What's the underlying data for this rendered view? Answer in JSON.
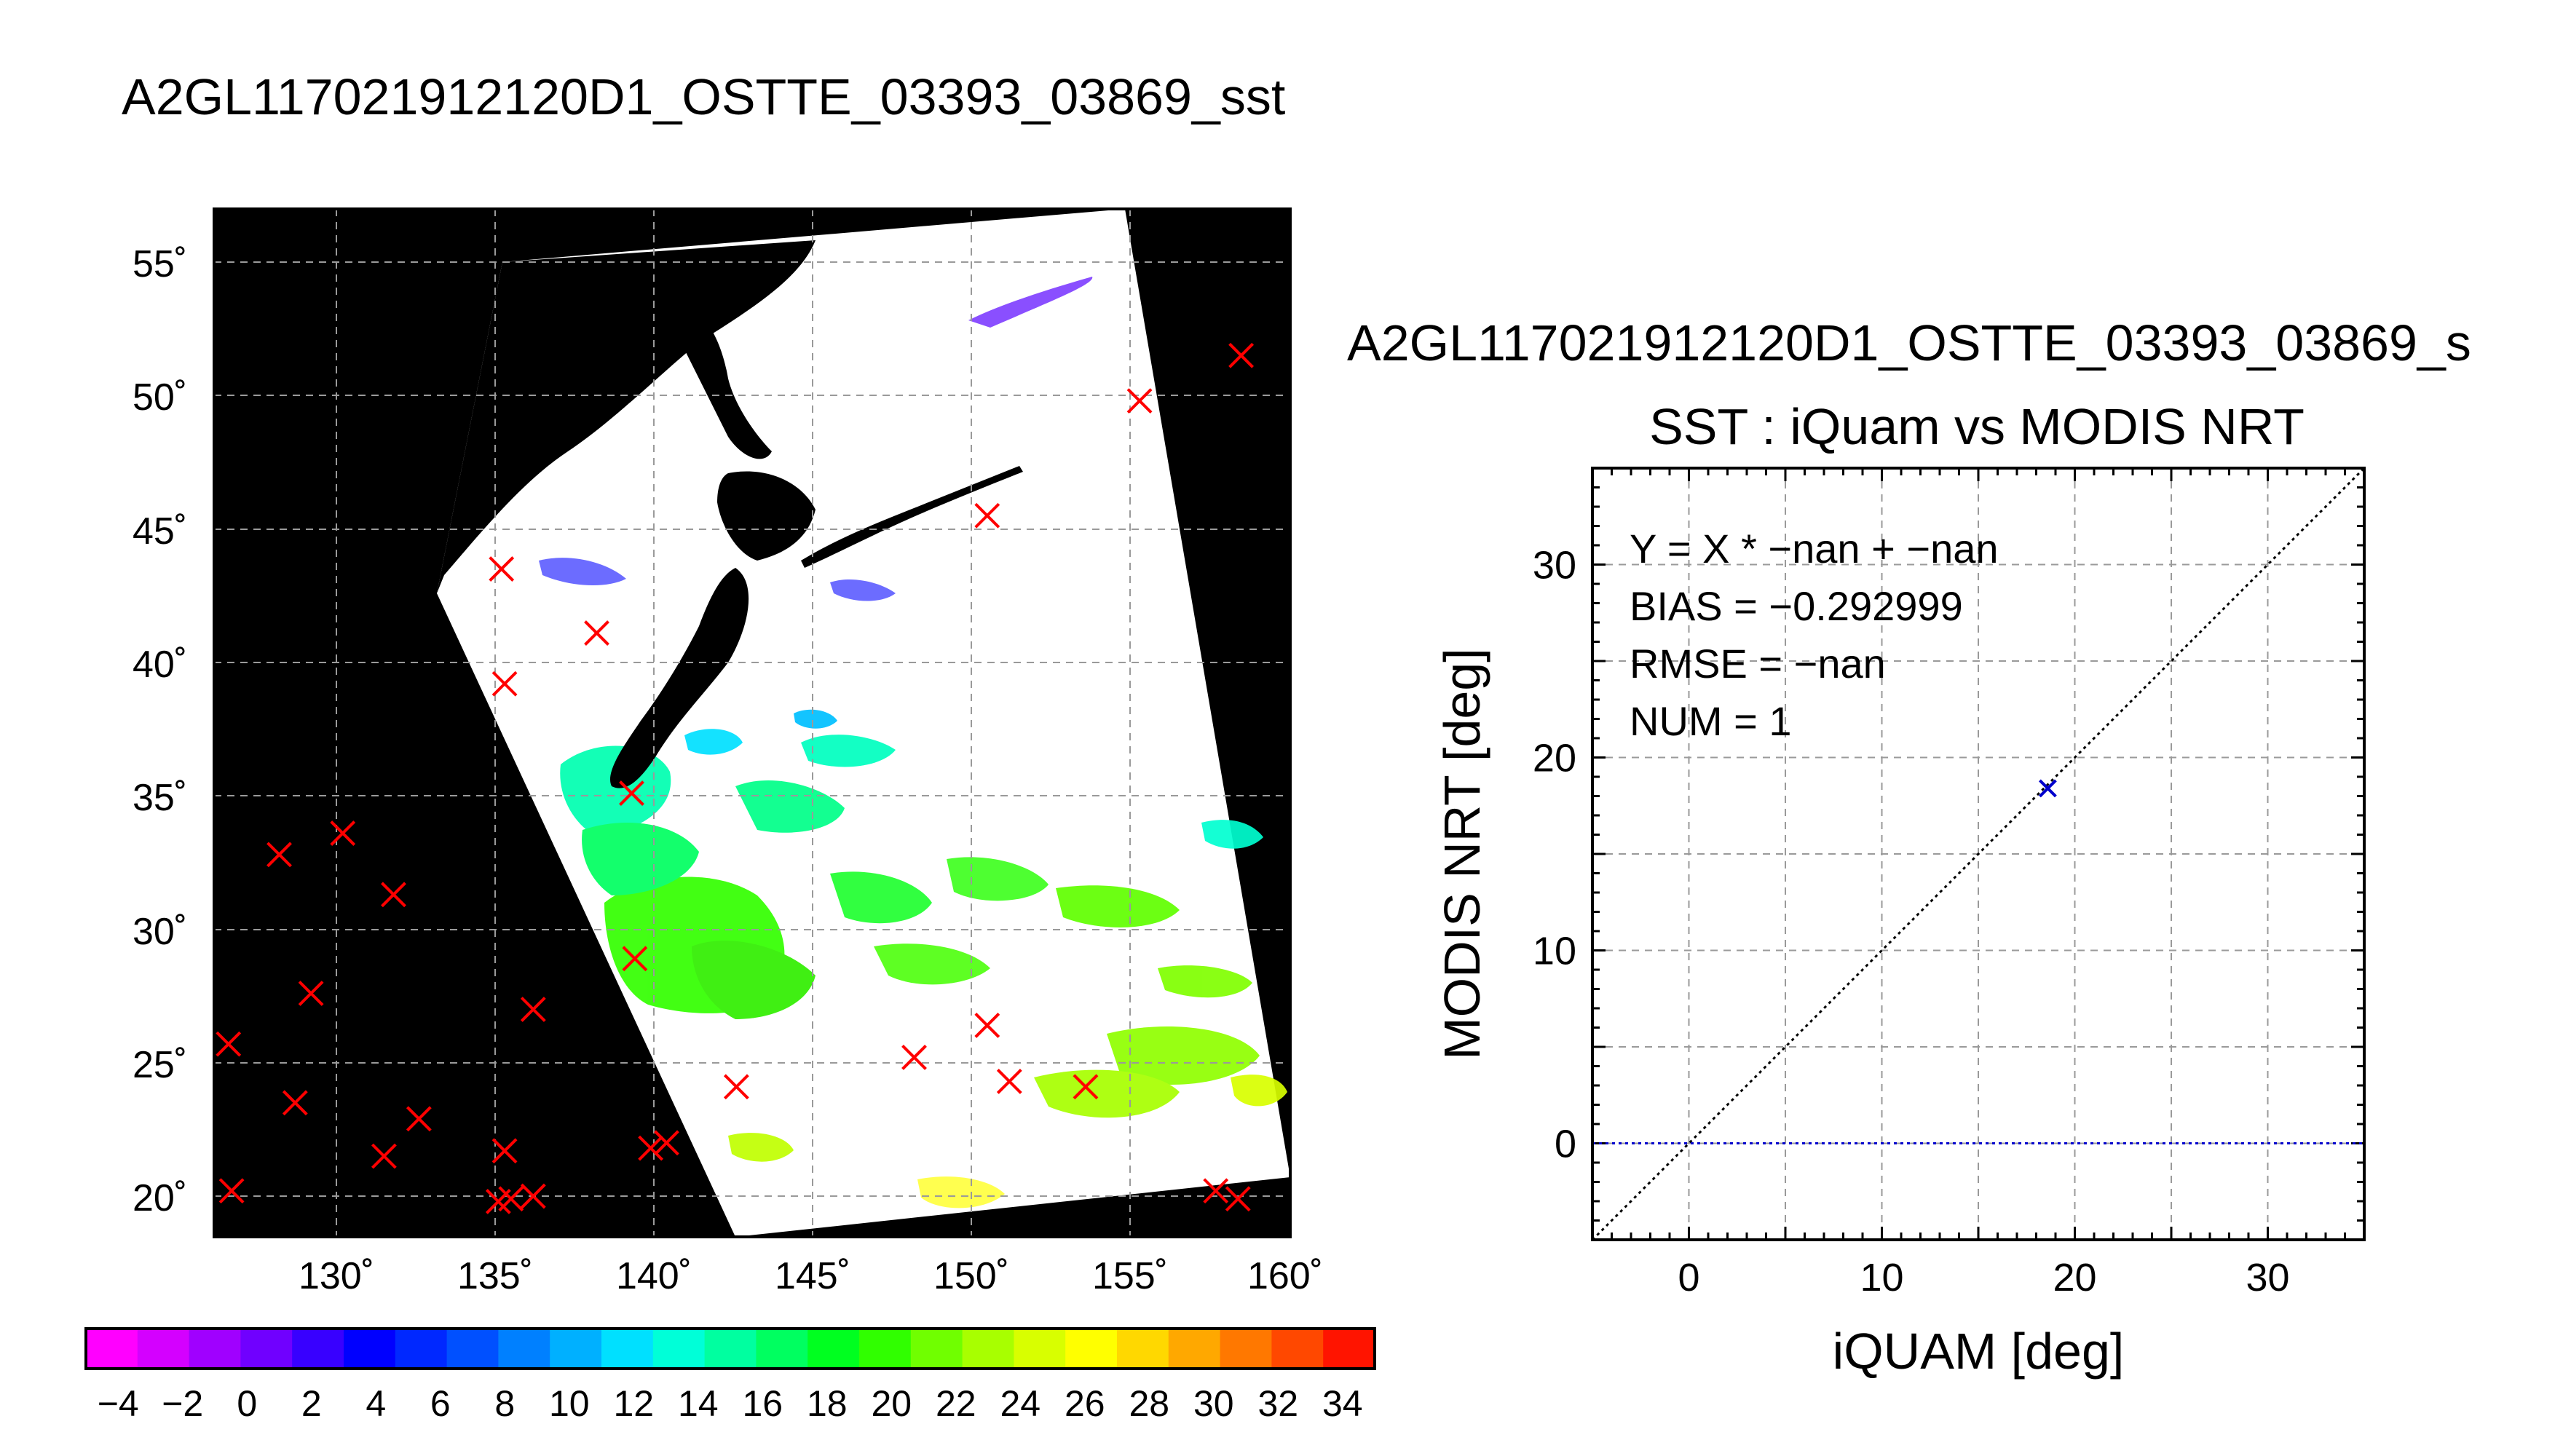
{
  "map_panel": {
    "title": "A2GL117021912120D1_OSTTE_03393_03869_sst",
    "lat_tick_labels": [
      "55˚",
      "50˚",
      "45˚",
      "40˚",
      "35˚",
      "30˚",
      "25˚",
      "20˚"
    ],
    "lon_tick_labels": [
      "130˚",
      "135˚",
      "140˚",
      "145˚",
      "150˚",
      "155˚",
      "160˚"
    ],
    "land_color": "#000000",
    "marker_color": "#ff0000",
    "colorbar": {
      "tick_labels": [
        "−4",
        "−2",
        "0",
        "2",
        "4",
        "6",
        "8",
        "10",
        "12",
        "14",
        "16",
        "18",
        "20",
        "22",
        "24",
        "26",
        "28",
        "30",
        "32",
        "34"
      ],
      "range": [
        -5,
        35
      ],
      "colors": [
        "#ff00ff",
        "#d400ff",
        "#a000ff",
        "#7000ff",
        "#3800ff",
        "#0000ff",
        "#0028ff",
        "#0050ff",
        "#0080ff",
        "#00b0ff",
        "#00e0ff",
        "#00ffd8",
        "#00ffa0",
        "#00ff60",
        "#00ff20",
        "#30ff00",
        "#70ff00",
        "#a8ff00",
        "#d8ff00",
        "#ffff00",
        "#ffd800",
        "#ffa800",
        "#ff7800",
        "#ff4800",
        "#ff1400"
      ]
    },
    "markers": [
      {
        "lon": 158.5,
        "lat": 51.5
      },
      {
        "lon": 155.3,
        "lat": 49.8
      },
      {
        "lon": 150.5,
        "lat": 45.5
      },
      {
        "lon": 135.2,
        "lat": 43.5
      },
      {
        "lon": 138.2,
        "lat": 41.1
      },
      {
        "lon": 135.3,
        "lat": 39.2
      },
      {
        "lon": 139.3,
        "lat": 35.1
      },
      {
        "lon": 128.2,
        "lat": 32.8
      },
      {
        "lon": 130.2,
        "lat": 33.6
      },
      {
        "lon": 131.8,
        "lat": 31.3
      },
      {
        "lon": 139.4,
        "lat": 28.9
      },
      {
        "lon": 129.2,
        "lat": 27.6
      },
      {
        "lon": 136.2,
        "lat": 27.0
      },
      {
        "lon": 150.5,
        "lat": 26.4
      },
      {
        "lon": 126.6,
        "lat": 25.7
      },
      {
        "lon": 148.2,
        "lat": 25.2
      },
      {
        "lon": 151.2,
        "lat": 24.3
      },
      {
        "lon": 153.6,
        "lat": 24.1
      },
      {
        "lon": 142.6,
        "lat": 24.1
      },
      {
        "lon": 128.7,
        "lat": 23.5
      },
      {
        "lon": 132.6,
        "lat": 22.9
      },
      {
        "lon": 135.3,
        "lat": 21.7
      },
      {
        "lon": 131.5,
        "lat": 21.5
      },
      {
        "lon": 139.9,
        "lat": 21.8
      },
      {
        "lon": 140.4,
        "lat": 22.0
      },
      {
        "lon": 126.7,
        "lat": 20.2
      },
      {
        "lon": 135.1,
        "lat": 19.8
      },
      {
        "lon": 135.5,
        "lat": 19.9
      },
      {
        "lon": 136.2,
        "lat": 20.0
      },
      {
        "lon": 157.7,
        "lat": 20.2
      },
      {
        "lon": 158.4,
        "lat": 19.9
      }
    ]
  },
  "chart_data": {
    "type": "scatter",
    "title": "A2GL117021912120D1_OSTTE_03393_03869_s",
    "subtitle": "SST : iQuam vs MODIS NRT",
    "xlabel": "iQUAM [deg]",
    "ylabel": "MODIS NRT [deg]",
    "xlim": [
      -5,
      35
    ],
    "ylim": [
      -5,
      35
    ],
    "x_tick_labels": [
      "0",
      "10",
      "20",
      "30"
    ],
    "y_tick_labels": [
      "0",
      "10",
      "20",
      "30"
    ],
    "grid": true,
    "points": [
      {
        "x": 18.6,
        "y": 18.4
      }
    ],
    "point_color": "#0000cc",
    "reference_line": "y = x",
    "fit_line_y": 0,
    "fit_line_color": "#0000cc",
    "annotations": [
      "Y = X * −nan + −nan",
      "BIAS = −0.292999",
      "RMSE = −nan",
      "NUM = 1"
    ]
  }
}
